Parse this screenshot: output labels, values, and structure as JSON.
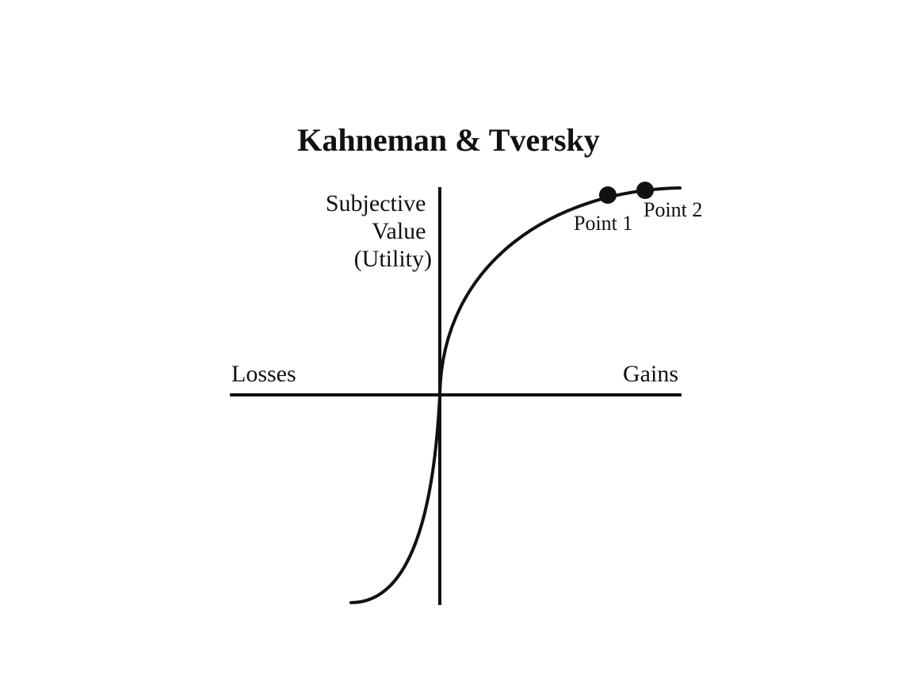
{
  "title": "Kahneman & Tversky",
  "y_axis_label": [
    "Subjective",
    "Value",
    "(Utility)"
  ],
  "x_axis_labels": {
    "negative": "Losses",
    "positive": "Gains"
  },
  "points": [
    {
      "label": "Point 1"
    },
    {
      "label": "Point 2"
    }
  ],
  "colors": {
    "ink": "#111111",
    "background": "#ffffff"
  }
}
